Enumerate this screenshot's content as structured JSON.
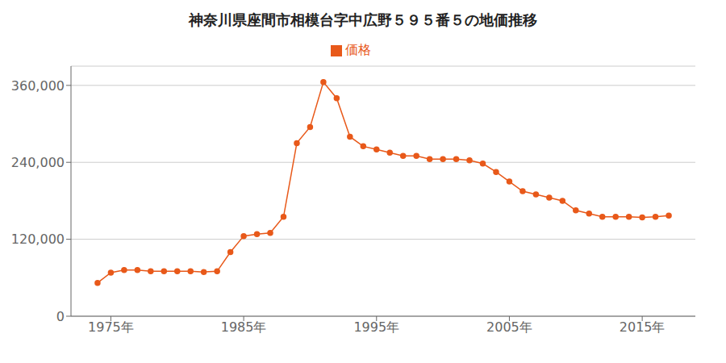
{
  "chart_data": {
    "type": "line",
    "title": "神奈川県座間市相模台字中広野５９５番５の地価推移",
    "x": [
      1974,
      1975,
      1976,
      1977,
      1978,
      1979,
      1980,
      1981,
      1982,
      1983,
      1984,
      1985,
      1986,
      1987,
      1988,
      1989,
      1990,
      1991,
      1992,
      1993,
      1994,
      1995,
      1996,
      1997,
      1998,
      1999,
      2000,
      2001,
      2002,
      2003,
      2004,
      2005,
      2006,
      2007,
      2008,
      2009,
      2010,
      2011,
      2012,
      2013,
      2014,
      2015,
      2016,
      2017
    ],
    "series": [
      {
        "name": "価格",
        "color": "#E8591A",
        "marker": "circle",
        "values": [
          52000,
          68000,
          72000,
          72000,
          70000,
          70000,
          70000,
          70000,
          69000,
          70000,
          100000,
          125000,
          128000,
          130000,
          155000,
          270000,
          295000,
          365000,
          340000,
          280000,
          265000,
          260000,
          255000,
          250000,
          250000,
          245000,
          245000,
          245000,
          243000,
          238000,
          225000,
          210000,
          195000,
          190000,
          185000,
          180000,
          165000,
          160000,
          155000,
          155000,
          155000,
          154000,
          155000,
          157000
        ]
      }
    ],
    "xlim": [
      1972,
      2019
    ],
    "xticks": [
      {
        "value": 1975,
        "label": "1975年"
      },
      {
        "value": 1985,
        "label": "1985年"
      },
      {
        "value": 1995,
        "label": "1995年"
      },
      {
        "value": 2005,
        "label": "2005年"
      },
      {
        "value": 2015,
        "label": "2015年"
      }
    ],
    "ylim": [
      0,
      390000
    ],
    "yticks": [
      0,
      {
        "value": 120000,
        "label": "120,000"
      },
      {
        "value": 240000,
        "label": "240,000"
      },
      {
        "value": 360000,
        "label": "360,000"
      }
    ],
    "grid": true,
    "legend": "top"
  }
}
